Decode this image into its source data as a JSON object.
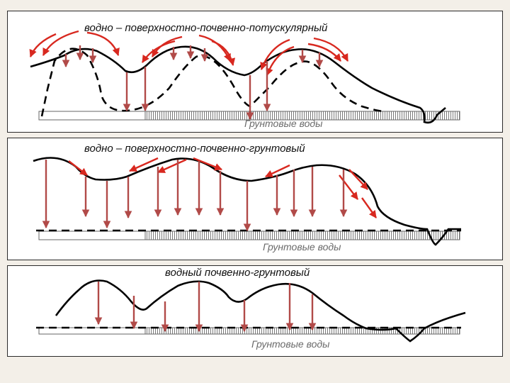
{
  "colors": {
    "arrow": "#b14a48",
    "arrow_bright": "#d8281f",
    "terrain": "#000000",
    "hatch": "#7a7a7a"
  },
  "panels": [
    {
      "title": "водно – поверхностно-почвенно-потускулярный",
      "groundwater_label": "Грунтовые воды"
    },
    {
      "title": "водно – поверхностно-почвенно-грунтовый",
      "groundwater_label": "Грунтовые воды"
    },
    {
      "title": "водный почвенно-грунтовый",
      "groundwater_label": "Грунтовые воды"
    }
  ]
}
